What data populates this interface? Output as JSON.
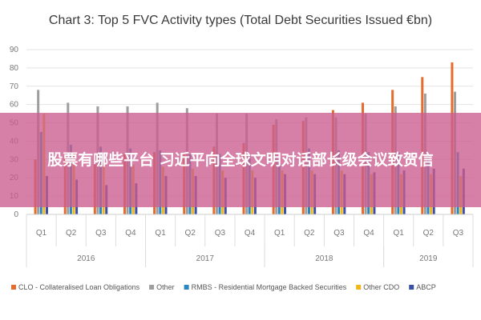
{
  "chart_data": {
    "type": "bar",
    "title": "Chart 3: Top 5 FVC Activity types (Total Debt Securities Issued €bn)",
    "xlabel": "",
    "ylabel": "",
    "ylim": [
      0,
      90
    ],
    "yticks": [
      0,
      10,
      20,
      30,
      40,
      50,
      60,
      70,
      80,
      90
    ],
    "grid": true,
    "legend_position": "bottom",
    "categories": [
      "Q1",
      "Q2",
      "Q3",
      "Q4",
      "Q1",
      "Q2",
      "Q3",
      "Q4",
      "Q1",
      "Q2",
      "Q3",
      "Q4",
      "Q1",
      "Q2",
      "Q3"
    ],
    "year_groups": [
      {
        "label": "2016",
        "count": 4
      },
      {
        "label": "2017",
        "count": 4
      },
      {
        "label": "2018",
        "count": 4
      },
      {
        "label": "2019",
        "count": 3
      }
    ],
    "series": [
      {
        "name": "CLO - Collateralised Loan Obligations",
        "color": "#e46c2e",
        "values": [
          30,
          31,
          33,
          33,
          34,
          34,
          37,
          39,
          49,
          51,
          57,
          61,
          68,
          75,
          83
        ]
      },
      {
        "name": "Other",
        "color": "#9e9e9e",
        "values": [
          68,
          61,
          59,
          59,
          61,
          58,
          55,
          55,
          52,
          53,
          53,
          55,
          59,
          66,
          67
        ]
      },
      {
        "name": "RMBS - Residential Mortgage Backed Securities",
        "color": "#2b87c2",
        "values": [
          45,
          38,
          37,
          36,
          35,
          33,
          33,
          33,
          32,
          36,
          35,
          34,
          34,
          33,
          34
        ]
      },
      {
        "name": "Other CDO",
        "color": "#f2b619",
        "values": [
          55,
          33,
          28,
          27,
          26,
          25,
          24,
          24,
          24,
          24,
          24,
          22,
          22,
          22,
          21
        ]
      },
      {
        "name": "ABCP",
        "color": "#3b4fa5",
        "values": [
          21,
          19,
          16,
          17,
          21,
          21,
          20,
          20,
          22,
          22,
          22,
          23,
          24,
          25,
          25
        ]
      }
    ]
  },
  "overlay": {
    "text": "股票有哪些平台 习近平向全球文明对话部长级会议致贺信",
    "color": "#cc5c8e"
  }
}
